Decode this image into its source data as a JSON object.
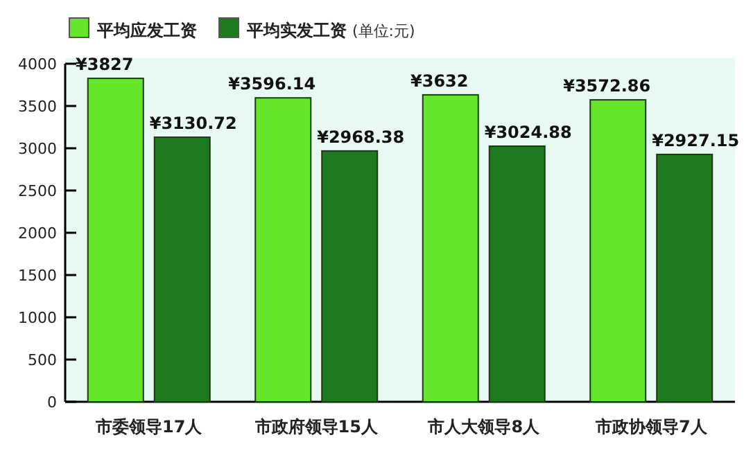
{
  "chart_data": {
    "type": "bar",
    "categories": [
      "市委领导17人",
      "市政府领导15人",
      "市人大领导8人",
      "市政协领导7人"
    ],
    "series": [
      {
        "name": "平均应发工资",
        "color": "#66e62a",
        "values": [
          3827,
          3596.14,
          3632,
          3572.86
        ],
        "value_labels": [
          "¥3827",
          "¥3596.14",
          "¥3632",
          "¥3572.86"
        ]
      },
      {
        "name": "平均实发工资",
        "color": "#1e7a1e",
        "values": [
          3130.72,
          2968.38,
          3024.88,
          2927.15
        ],
        "value_labels": [
          "¥3130.72",
          "¥2968.38",
          "¥3024.88",
          "¥2927.15"
        ]
      }
    ],
    "annotations": [
      "(单位:元)"
    ],
    "ylim": [
      0,
      4000
    ],
    "yticks": [
      0,
      500,
      1000,
      1500,
      2000,
      2500,
      3000,
      3500,
      4000
    ],
    "legend": "top",
    "grid": false
  }
}
